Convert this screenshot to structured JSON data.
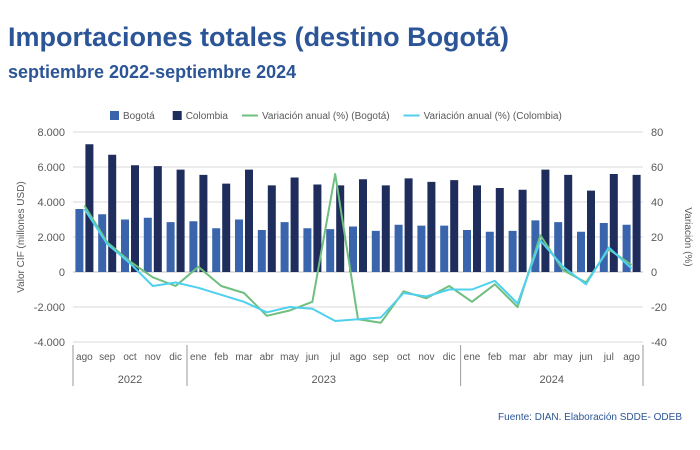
{
  "title": "Importaciones totales (destino Bogotá)",
  "subtitle": "septiembre 2022-septiembre  2024",
  "source": "Fuente: DIAN. Elaboración SDDE- ODEB",
  "colors": {
    "bogota": "#3a65ad",
    "colombia": "#1f2d5c",
    "var_bogota": "#6fbf7f",
    "var_colombia": "#4fd0ef",
    "axis_text": "#595959",
    "grid": "#d9d9d9"
  },
  "chart_data": {
    "type": "bar",
    "categories": [
      "ago",
      "sep",
      "oct",
      "nov",
      "dic",
      "ene",
      "feb",
      "mar",
      "abr",
      "may",
      "jun",
      "jul",
      "ago",
      "sep",
      "oct",
      "nov",
      "dic",
      "ene",
      "feb",
      "mar",
      "abr",
      "may",
      "jun",
      "jul",
      "ago"
    ],
    "year_groups": [
      {
        "label": "2022",
        "start": 0,
        "end": 4
      },
      {
        "label": "2023",
        "start": 5,
        "end": 16
      },
      {
        "label": "2024",
        "start": 17,
        "end": 24
      }
    ],
    "series": [
      {
        "name": "Bogotá",
        "kind": "bar",
        "axis": "left",
        "values": [
          3600,
          3300,
          3000,
          3100,
          2850,
          2900,
          2500,
          3000,
          2400,
          2850,
          2500,
          2450,
          2600,
          2350,
          2700,
          2650,
          2650,
          2400,
          2300,
          2350,
          2950,
          2850,
          2300,
          2800,
          2700
        ]
      },
      {
        "name": "Colombia",
        "kind": "bar",
        "axis": "left",
        "values": [
          7300,
          6700,
          6100,
          6050,
          5850,
          5550,
          5050,
          5850,
          4950,
          5400,
          5000,
          4950,
          5300,
          4950,
          5350,
          5150,
          5250,
          4950,
          4800,
          4700,
          5850,
          5550,
          4650,
          5600,
          5550
        ]
      },
      {
        "name": "Variación anual (%) (Bogotá)",
        "kind": "line",
        "axis": "right",
        "values": [
          38,
          17,
          6,
          -3,
          -8,
          3,
          -8,
          -12,
          -25,
          -22,
          -17,
          56,
          -27,
          -29,
          -11,
          -15,
          -8,
          -17,
          -7,
          -20,
          21,
          1,
          -6,
          13,
          4
        ]
      },
      {
        "name": "Variación anual (%) (Colombia)",
        "kind": "line",
        "axis": "right",
        "values": [
          36,
          16,
          5,
          -8,
          -6,
          -9,
          -13,
          -17,
          -23,
          -20,
          -21,
          -28,
          -27,
          -26,
          -12,
          -14,
          -10,
          -10,
          -5,
          -18,
          18,
          3,
          -7,
          14,
          2
        ]
      }
    ],
    "ylabel": "Valor CIF (millones USD)",
    "y2label": "Variación (%)",
    "ylim": [
      -4000,
      8000
    ],
    "y2lim": [
      -40,
      80
    ],
    "yticks": [
      "8.000",
      "6.000",
      "4.000",
      "2.000",
      "0",
      "-2.000",
      "-4.000"
    ],
    "y2ticks": [
      "80",
      "60",
      "40",
      "20",
      "0",
      "-20",
      "-40"
    ],
    "legend_position": "top"
  }
}
